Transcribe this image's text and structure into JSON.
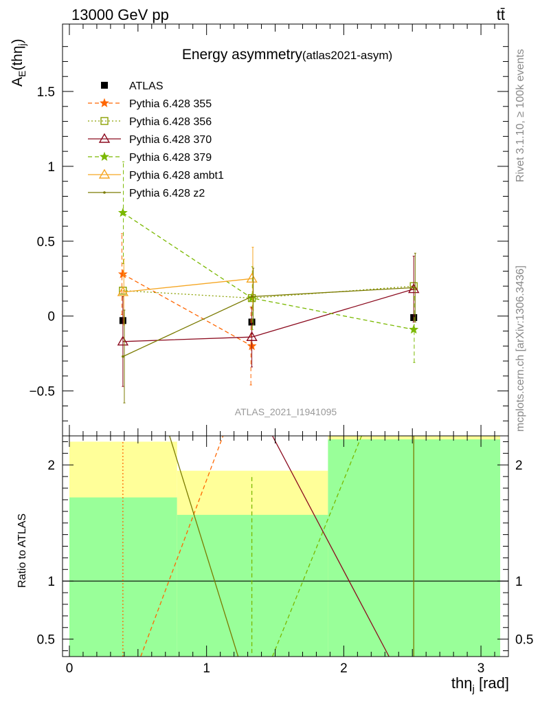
{
  "header": {
    "energy_label": "13000 GeV pp",
    "process_label": "tt̄"
  },
  "side_text": {
    "version": "Rivet 3.1.10, ≥ 100k events",
    "site": "mcplots.cern.ch [arXiv:1306.3436]"
  },
  "chart_data": [
    {
      "type": "line",
      "panel": "main",
      "title": "Energy asymmetry",
      "title_suffix": "(atlas2021-asym)",
      "watermark": "ATLAS_2021_I1941095",
      "ylabel": "A_E(thη_j)",
      "xlim": [
        -0.05,
        3.2
      ],
      "ylim": [
        -0.8,
        1.95
      ],
      "yticks": [
        -0.5,
        0,
        0.5,
        1,
        1.5
      ],
      "ytick_labels": [
        "−0.5",
        "0",
        "0.5",
        "1",
        "1.5"
      ],
      "legend_position": "top-left",
      "series": [
        {
          "name": "ATLAS",
          "color": "#000000",
          "marker": "square-filled",
          "line": "none",
          "x": [
            0.39,
            1.33,
            2.51
          ],
          "y": [
            -0.03,
            -0.04,
            -0.01
          ]
        },
        {
          "name": "Pythia 6.428 355",
          "color": "#ff6600",
          "marker": "star",
          "line": "dashed",
          "x": [
            0.39,
            1.33
          ],
          "y": [
            0.28,
            -0.2
          ],
          "yerr": [
            [
              0.27,
              0.27
            ],
            [
              0.26,
              0.26
            ]
          ]
        },
        {
          "name": "Pythia 6.428 356",
          "color": "#8aa000",
          "marker": "square-open",
          "line": "dotted",
          "x": [
            0.39,
            1.33,
            2.51
          ],
          "y": [
            0.17,
            0.12,
            0.2
          ]
        },
        {
          "name": "Pythia 6.428 370",
          "color": "#8b0a1e",
          "marker": "triangle-open",
          "line": "solid",
          "x": [
            0.39,
            1.33,
            2.51
          ],
          "y": [
            -0.17,
            -0.14,
            0.18
          ],
          "yerr": [
            [
              0.3,
              0.3
            ],
            [
              0.2,
              0.2
            ],
            [
              0.22,
              0.22
            ]
          ]
        },
        {
          "name": "Pythia 6.428 379",
          "color": "#7ab800",
          "marker": "star",
          "line": "dashed",
          "x": [
            0.39,
            1.33,
            2.51
          ],
          "y": [
            0.69,
            0.12,
            -0.09
          ],
          "yerr": [
            [
              0.34,
              0.34
            ],
            [
              0.21,
              0.21
            ],
            [
              0.22,
              0.22
            ]
          ]
        },
        {
          "name": "Pythia 6.428 ambt1",
          "color": "#f5a623",
          "marker": "triangle-open",
          "line": "solid",
          "x": [
            0.39,
            1.33
          ],
          "y": [
            0.16,
            0.25
          ],
          "yerr": [
            [
              0.22,
              0.22
            ],
            [
              0.21,
              0.21
            ]
          ]
        },
        {
          "name": "Pythia 6.428 z2",
          "color": "#7a7a00",
          "marker": "dot",
          "line": "solid",
          "x": [
            0.39,
            1.33,
            2.51
          ],
          "y": [
            -0.27,
            0.13,
            0.19
          ],
          "yerr": [
            [
              0.31,
              0.31
            ],
            [
              0.19,
              0.19
            ],
            [
              0.23,
              0.23
            ]
          ]
        }
      ]
    },
    {
      "type": "line",
      "panel": "ratio",
      "ylabel": "Ratio to ATLAS",
      "xlabel": "thη_j [rad]",
      "xlim": [
        -0.05,
        3.2
      ],
      "ylim": [
        0.35,
        2.25
      ],
      "xticks": [
        0,
        1,
        2,
        3
      ],
      "xtick_labels": [
        "0",
        "1",
        "2",
        "3"
      ],
      "yticks": [
        0.5,
        1,
        2
      ],
      "ytick_labels": [
        "0.5",
        "1",
        "2"
      ],
      "reference_line": 1,
      "bands": {
        "bin_edges": [
          0,
          0.785,
          1.885,
          3.14
        ],
        "yellow_color": "#ffff99",
        "green_color": "#99ff99",
        "yellow": [
          [
            0.35,
            2.2
          ],
          [
            0.55,
            1.95
          ],
          [
            0.35,
            2.25
          ]
        ],
        "green": [
          [
            0.35,
            1.72
          ],
          [
            0.35,
            1.57
          ],
          [
            0.35,
            2.22
          ]
        ]
      },
      "lines": [
        {
          "name": "Pythia 6.428 355",
          "color": "#ff6600",
          "dash": "dashed",
          "x": [
            0.52,
            1.12
          ],
          "y": [
            0.35,
            2.25
          ]
        },
        {
          "name": "Pythia 6.428 379",
          "color": "#7ab800",
          "dash": "dashed",
          "x": [
            1.48,
            2.13
          ],
          "y": [
            0.35,
            2.25
          ]
        },
        {
          "name": "Pythia 6.428 z2",
          "color": "#7a7a00",
          "dash": "solid",
          "x": [
            0.73,
            1.23
          ],
          "y": [
            2.25,
            0.35
          ]
        },
        {
          "name": "Pythia 6.428 370",
          "color": "#8b0a1e",
          "dash": "solid",
          "x": [
            1.48,
            2.33
          ],
          "y": [
            2.25,
            0.35
          ]
        },
        {
          "name": "Pythia 6.428 355",
          "color": "#ff6600",
          "dash": "dotted",
          "x": [
            0.39,
            0.39
          ],
          "y": [
            0.35,
            2.2
          ]
        },
        {
          "name": "Pythia 6.428 379",
          "color": "#7ab800",
          "dash": "dashed",
          "x": [
            1.33,
            1.33
          ],
          "y": [
            0.38,
            1.92
          ]
        },
        {
          "name": "Pythia 6.428 z2",
          "color": "#7a7a00",
          "dash": "solid",
          "x": [
            2.51,
            2.51
          ],
          "y": [
            0.35,
            2.25
          ]
        }
      ]
    }
  ]
}
